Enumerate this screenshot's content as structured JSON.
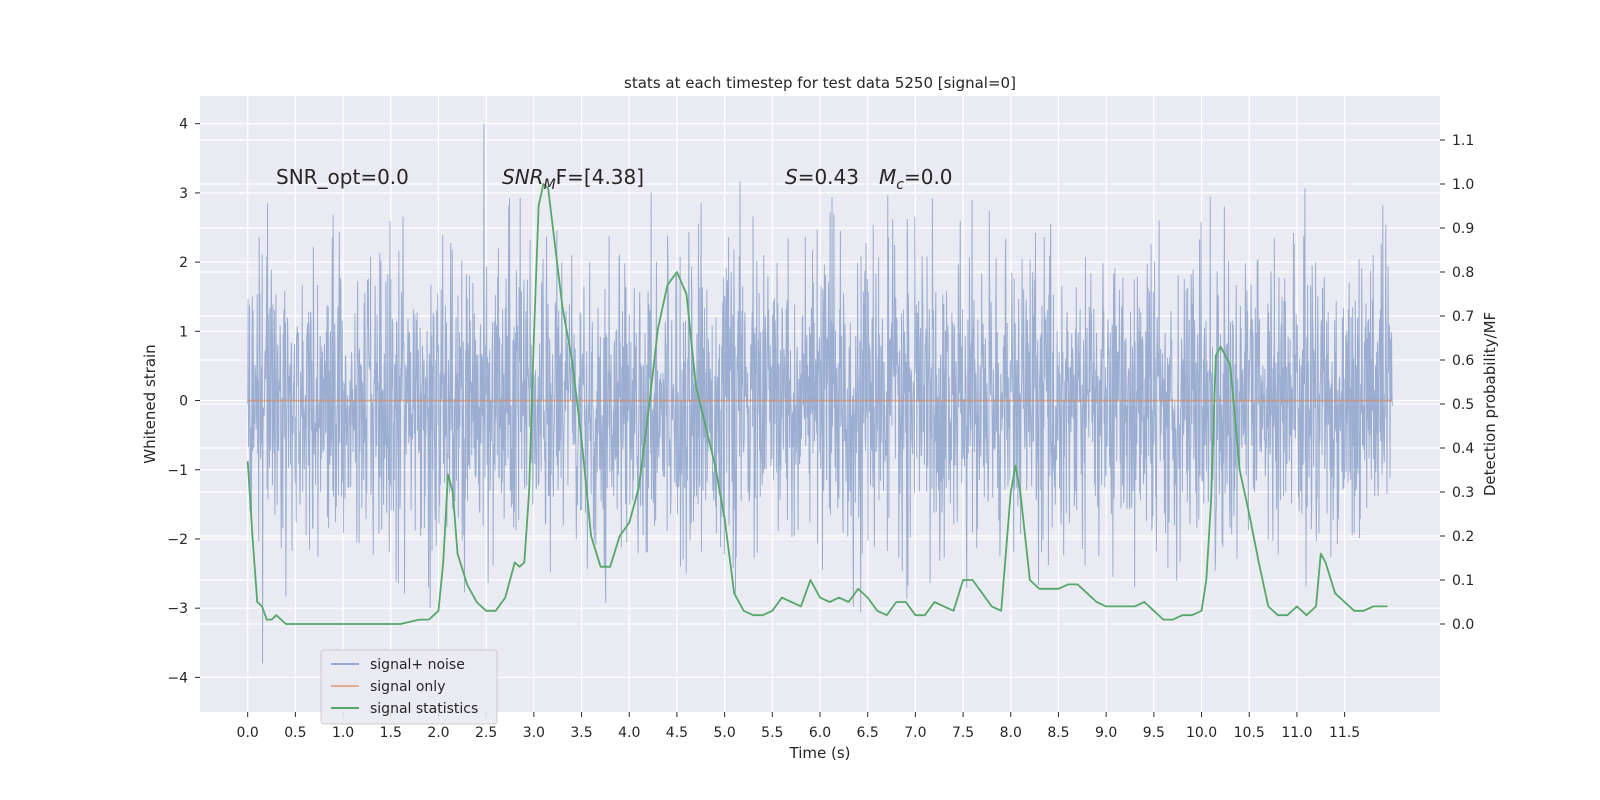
{
  "chart_data": {
    "type": "line",
    "title": "stats at each timestep for test data 5250 [signal=0]",
    "xlabel": "Time (s)",
    "ylabel_left": "Whitened strain",
    "ylabel_right": "Detection probability/MF",
    "xlim": [
      -0.5,
      12.5
    ],
    "ylim_left": [
      -4.5,
      4.4
    ],
    "ylim_right": [
      -0.2,
      1.2
    ],
    "x_ticks": [
      "0.0",
      "0.5",
      "1.0",
      "1.5",
      "2.0",
      "2.5",
      "3.0",
      "3.5",
      "4.0",
      "4.5",
      "5.0",
      "5.5",
      "6.0",
      "6.5",
      "7.0",
      "7.5",
      "8.0",
      "8.5",
      "9.0",
      "9.5",
      "10.0",
      "10.5",
      "11.0",
      "11.5"
    ],
    "y_ticks_left": [
      "4",
      "3",
      "2",
      "1",
      "0",
      "−1",
      "−2",
      "−3",
      "−4"
    ],
    "y_ticks_right": [
      "1.1",
      "1.0",
      "0.9",
      "0.8",
      "0.7",
      "0.6",
      "0.5",
      "0.4",
      "0.3",
      "0.2",
      "0.1",
      "0.0"
    ],
    "grid": true,
    "legend_placement": "lower-left",
    "annotations": {
      "snr_opt": "SNR_opt=0.0",
      "snr_mf_main": "SNR",
      "snr_mf_sub": "M",
      "snr_mf_rest": "F=[4.38]",
      "s_main": "S",
      "s_rest": "=0.43",
      "mc_main": "M",
      "mc_sub": "c",
      "mc_rest": "=0.0"
    },
    "series": [
      {
        "name": "signal+ noise",
        "color": "#4c72b0",
        "style": "dense noise strain, approx. range -4.1 to 4.0, bulk within ±1.2",
        "x_range": [
          0.0,
          12.0
        ],
        "envelope": [
          -4.1,
          4.0
        ]
      },
      {
        "name": "signal only",
        "color": "#dd8452",
        "x": [
          0.0,
          12.0
        ],
        "values": [
          0.0,
          0.0
        ]
      },
      {
        "name": "signal statistics",
        "color": "#55a868",
        "axis": "right",
        "x": [
          0.0,
          0.05,
          0.1,
          0.15,
          0.2,
          0.25,
          0.3,
          0.4,
          0.5,
          0.6,
          0.7,
          0.8,
          1.0,
          1.2,
          1.4,
          1.6,
          1.8,
          1.9,
          2.0,
          2.05,
          2.1,
          2.15,
          2.2,
          2.3,
          2.4,
          2.5,
          2.6,
          2.7,
          2.8,
          2.85,
          2.9,
          2.95,
          3.0,
          3.05,
          3.1,
          3.15,
          3.2,
          3.3,
          3.4,
          3.5,
          3.6,
          3.7,
          3.8,
          3.9,
          4.0,
          4.1,
          4.2,
          4.3,
          4.4,
          4.5,
          4.6,
          4.7,
          4.8,
          4.9,
          5.0,
          5.1,
          5.2,
          5.3,
          5.4,
          5.5,
          5.6,
          5.7,
          5.8,
          5.9,
          6.0,
          6.1,
          6.2,
          6.3,
          6.4,
          6.5,
          6.6,
          6.7,
          6.8,
          6.9,
          7.0,
          7.1,
          7.2,
          7.3,
          7.4,
          7.5,
          7.6,
          7.7,
          7.8,
          7.9,
          8.0,
          8.05,
          8.1,
          8.2,
          8.3,
          8.4,
          8.5,
          8.6,
          8.7,
          8.8,
          8.9,
          9.0,
          9.1,
          9.2,
          9.3,
          9.4,
          9.5,
          9.6,
          9.7,
          9.8,
          9.9,
          10.0,
          10.05,
          10.1,
          10.15,
          10.2,
          10.3,
          10.4,
          10.5,
          10.6,
          10.7,
          10.8,
          10.9,
          11.0,
          11.1,
          11.2,
          11.25,
          11.3,
          11.4,
          11.5,
          11.6,
          11.7,
          11.8,
          11.9,
          11.95
        ],
        "values": [
          0.37,
          0.2,
          0.05,
          0.04,
          0.01,
          0.01,
          0.02,
          0.0,
          0.0,
          0.0,
          0.0,
          0.0,
          0.0,
          0.0,
          0.0,
          0.0,
          0.01,
          0.01,
          0.03,
          0.14,
          0.34,
          0.3,
          0.16,
          0.09,
          0.05,
          0.03,
          0.03,
          0.06,
          0.14,
          0.13,
          0.14,
          0.3,
          0.65,
          0.95,
          1.0,
          0.99,
          0.9,
          0.72,
          0.6,
          0.42,
          0.2,
          0.13,
          0.13,
          0.2,
          0.23,
          0.31,
          0.48,
          0.67,
          0.77,
          0.8,
          0.75,
          0.54,
          0.45,
          0.36,
          0.24,
          0.07,
          0.03,
          0.02,
          0.02,
          0.03,
          0.06,
          0.05,
          0.04,
          0.1,
          0.06,
          0.05,
          0.06,
          0.05,
          0.08,
          0.06,
          0.03,
          0.02,
          0.05,
          0.05,
          0.02,
          0.02,
          0.05,
          0.04,
          0.03,
          0.1,
          0.1,
          0.07,
          0.04,
          0.03,
          0.3,
          0.36,
          0.3,
          0.1,
          0.08,
          0.08,
          0.08,
          0.09,
          0.09,
          0.07,
          0.05,
          0.04,
          0.04,
          0.04,
          0.04,
          0.05,
          0.03,
          0.01,
          0.01,
          0.02,
          0.02,
          0.03,
          0.1,
          0.28,
          0.61,
          0.63,
          0.59,
          0.35,
          0.25,
          0.14,
          0.04,
          0.02,
          0.02,
          0.04,
          0.02,
          0.04,
          0.16,
          0.14,
          0.07,
          0.05,
          0.03,
          0.03,
          0.04,
          0.04,
          0.04
        ]
      }
    ]
  }
}
